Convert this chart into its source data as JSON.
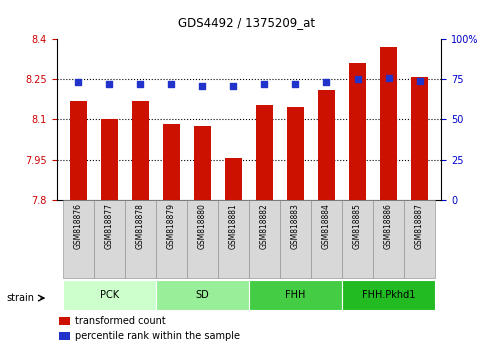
{
  "title": "GDS4492 / 1375209_at",
  "samples": [
    "GSM818876",
    "GSM818877",
    "GSM818878",
    "GSM818879",
    "GSM818880",
    "GSM818881",
    "GSM818882",
    "GSM818883",
    "GSM818884",
    "GSM818885",
    "GSM818886",
    "GSM818887"
  ],
  "bar_values": [
    8.17,
    8.1,
    8.17,
    8.085,
    8.075,
    7.955,
    8.155,
    8.145,
    8.21,
    8.31,
    8.37,
    8.26
  ],
  "blue_values": [
    73,
    72,
    72,
    72,
    71,
    71,
    72,
    72,
    73,
    75,
    76,
    74
  ],
  "bar_color": "#cc1100",
  "blue_color": "#2233cc",
  "ylim_left": [
    7.8,
    8.4
  ],
  "ylim_right": [
    0,
    100
  ],
  "yticks_left": [
    7.8,
    7.95,
    8.1,
    8.25,
    8.4
  ],
  "yticks_right": [
    0,
    25,
    50,
    75,
    100
  ],
  "groups": [
    {
      "label": "PCK",
      "start": 0,
      "end": 2,
      "color": "#ccffcc"
    },
    {
      "label": "SD",
      "start": 3,
      "end": 5,
      "color": "#99ee99"
    },
    {
      "label": "FHH",
      "start": 6,
      "end": 8,
      "color": "#44cc44"
    },
    {
      "label": "FHH.Pkhd1",
      "start": 9,
      "end": 11,
      "color": "#22bb22"
    }
  ],
  "strain_label": "strain",
  "legend_items": [
    {
      "label": "transformed count",
      "color": "#cc1100"
    },
    {
      "label": "percentile rank within the sample",
      "color": "#2233cc"
    }
  ],
  "dotted_lines": [
    8.25,
    8.1,
    7.95
  ],
  "bg_color": "#ffffff",
  "plot_bg": "#ffffff",
  "tick_label_color_left": "#cc0000",
  "tick_label_color_right": "#0000cc"
}
